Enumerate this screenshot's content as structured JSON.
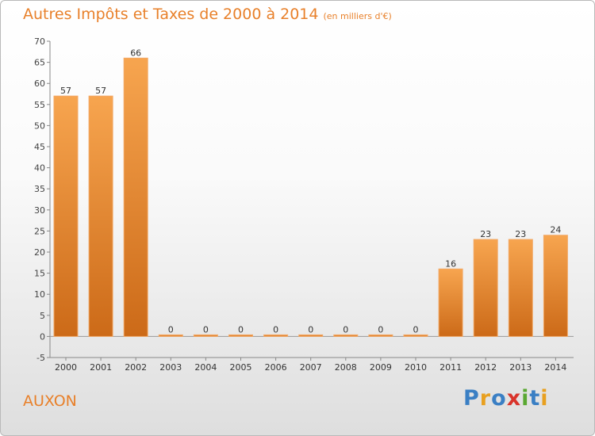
{
  "chart_data": {
    "type": "bar",
    "title": "Autres Impôts et Taxes de 2000 à 2014",
    "subtitle": "(en milliers d'€)",
    "categories": [
      "2000",
      "2001",
      "2002",
      "2003",
      "2004",
      "2005",
      "2006",
      "2007",
      "2008",
      "2009",
      "2010",
      "2011",
      "2012",
      "2013",
      "2014"
    ],
    "values": [
      57,
      57,
      66,
      0,
      0,
      0,
      0,
      0,
      0,
      0,
      0,
      16,
      23,
      23,
      24
    ],
    "ylim": [
      -5,
      70
    ],
    "yticks": [
      -5,
      0,
      5,
      10,
      15,
      20,
      25,
      30,
      35,
      40,
      45,
      50,
      55,
      60,
      65,
      70
    ],
    "grid": false,
    "bar_color": "#e8802a"
  },
  "place": "AUXON",
  "logo": {
    "text": "Proxiti",
    "letters": [
      {
        "ch": "P",
        "color": "#3a7fc4"
      },
      {
        "ch": "r",
        "color": "#e8a020"
      },
      {
        "ch": "o",
        "color": "#3a7fc4"
      },
      {
        "ch": "x",
        "color": "#d9342b"
      },
      {
        "ch": "i",
        "color": "#5aa832"
      },
      {
        "ch": "t",
        "color": "#3a7fc4"
      },
      {
        "ch": "i",
        "color": "#e8a020"
      }
    ]
  }
}
